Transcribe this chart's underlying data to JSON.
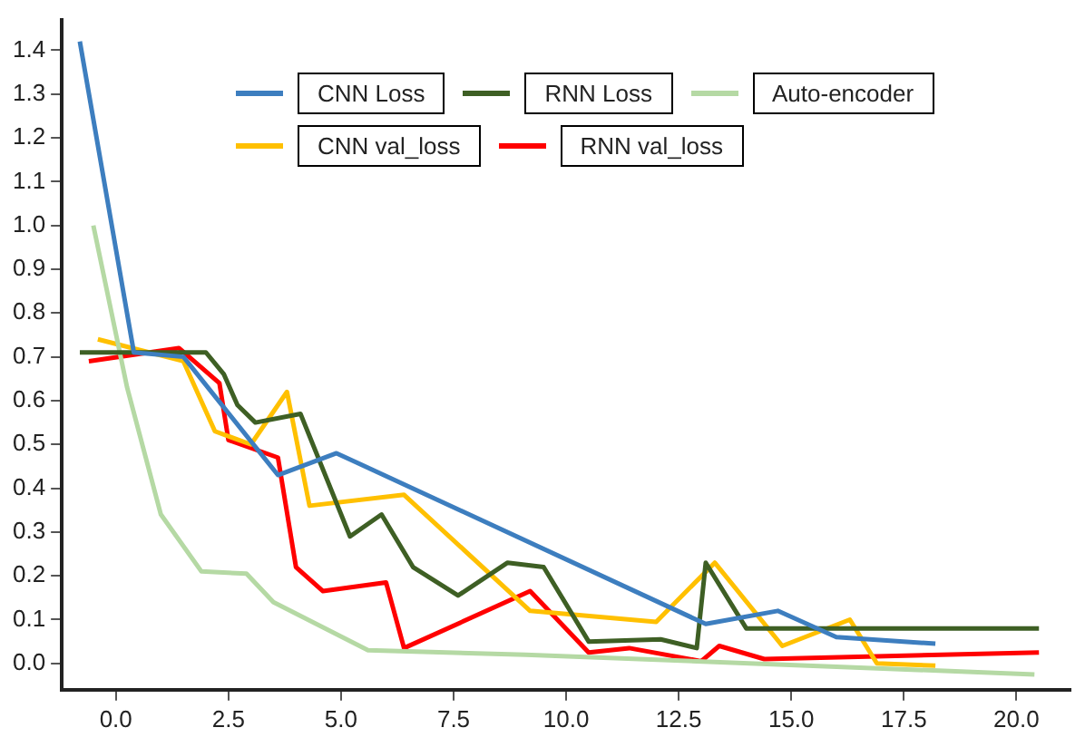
{
  "chart_data": {
    "type": "line",
    "legend": "top",
    "grid": false,
    "marker": "none",
    "line_style": "solid",
    "xlim": [
      -1.2,
      21.2
    ],
    "xticks": [
      {
        "value": 0,
        "label": "0.0"
      },
      2.5,
      {
        "value": 5,
        "label": "5.0"
      },
      7.5,
      {
        "value": 10,
        "label": "10.0"
      },
      12.5,
      {
        "value": 15,
        "label": "15.0"
      },
      17.5,
      {
        "value": 20,
        "label": "20.0"
      }
    ],
    "ylim": [
      -0.06,
      1.47
    ],
    "yticks": [
      {
        "value": 0,
        "label": "0.0"
      },
      0.1,
      0.2,
      0.3,
      0.4,
      0.5,
      0.6,
      0.7,
      0.8,
      0.9,
      {
        "value": 1,
        "label": "1.0"
      },
      1.1,
      1.2,
      1.3,
      1.4
    ],
    "series": [
      {
        "name": "CNN Loss",
        "color": "#3d7ebf",
        "x": [
          -0.8,
          0.4,
          1.5,
          3.6,
          4.9,
          13.1,
          14.7,
          16.0,
          18.2
        ],
        "values": [
          1.42,
          0.71,
          0.7,
          0.43,
          0.48,
          0.09,
          0.12,
          0.06,
          0.045
        ]
      },
      {
        "name": "RNN Loss",
        "color": "#3e5f24",
        "x": [
          -0.8,
          2.0,
          2.4,
          2.7,
          3.1,
          4.1,
          5.2,
          5.9,
          6.6,
          7.6,
          8.7,
          9.5,
          10.5,
          12.1,
          12.9,
          13.1,
          14.0,
          20.5
        ],
        "values": [
          0.71,
          0.71,
          0.66,
          0.59,
          0.55,
          0.57,
          0.29,
          0.34,
          0.22,
          0.155,
          0.23,
          0.22,
          0.05,
          0.055,
          0.035,
          0.23,
          0.08,
          0.08
        ]
      },
      {
        "name": "Auto-encoder",
        "color": "#b5d9a4",
        "x": [
          -0.5,
          0.25,
          1.0,
          1.9,
          2.9,
          3.5,
          5.6,
          9.1,
          20.4
        ],
        "values": [
          1.0,
          0.63,
          0.34,
          0.21,
          0.205,
          0.14,
          0.03,
          0.02,
          -0.025
        ]
      },
      {
        "name": "CNN val_loss",
        "color": "#ffc000",
        "x": [
          -0.4,
          1.5,
          2.2,
          3.0,
          3.8,
          4.3,
          6.4,
          9.2,
          12.0,
          13.3,
          14.8,
          16.3,
          16.9,
          18.2
        ],
        "values": [
          0.74,
          0.69,
          0.53,
          0.5,
          0.62,
          0.36,
          0.385,
          0.12,
          0.095,
          0.23,
          0.04,
          0.1,
          0.0,
          -0.005
        ]
      },
      {
        "name": "RNN val_loss",
        "color": "#ff0000",
        "x": [
          -0.6,
          1.4,
          2.3,
          2.5,
          3.6,
          4.0,
          4.6,
          6.0,
          6.4,
          9.2,
          10.5,
          11.4,
          13.0,
          13.4,
          14.4,
          20.5
        ],
        "values": [
          0.69,
          0.72,
          0.64,
          0.51,
          0.47,
          0.22,
          0.165,
          0.185,
          0.035,
          0.165,
          0.025,
          0.035,
          0.005,
          0.04,
          0.01,
          0.025
        ]
      }
    ]
  }
}
